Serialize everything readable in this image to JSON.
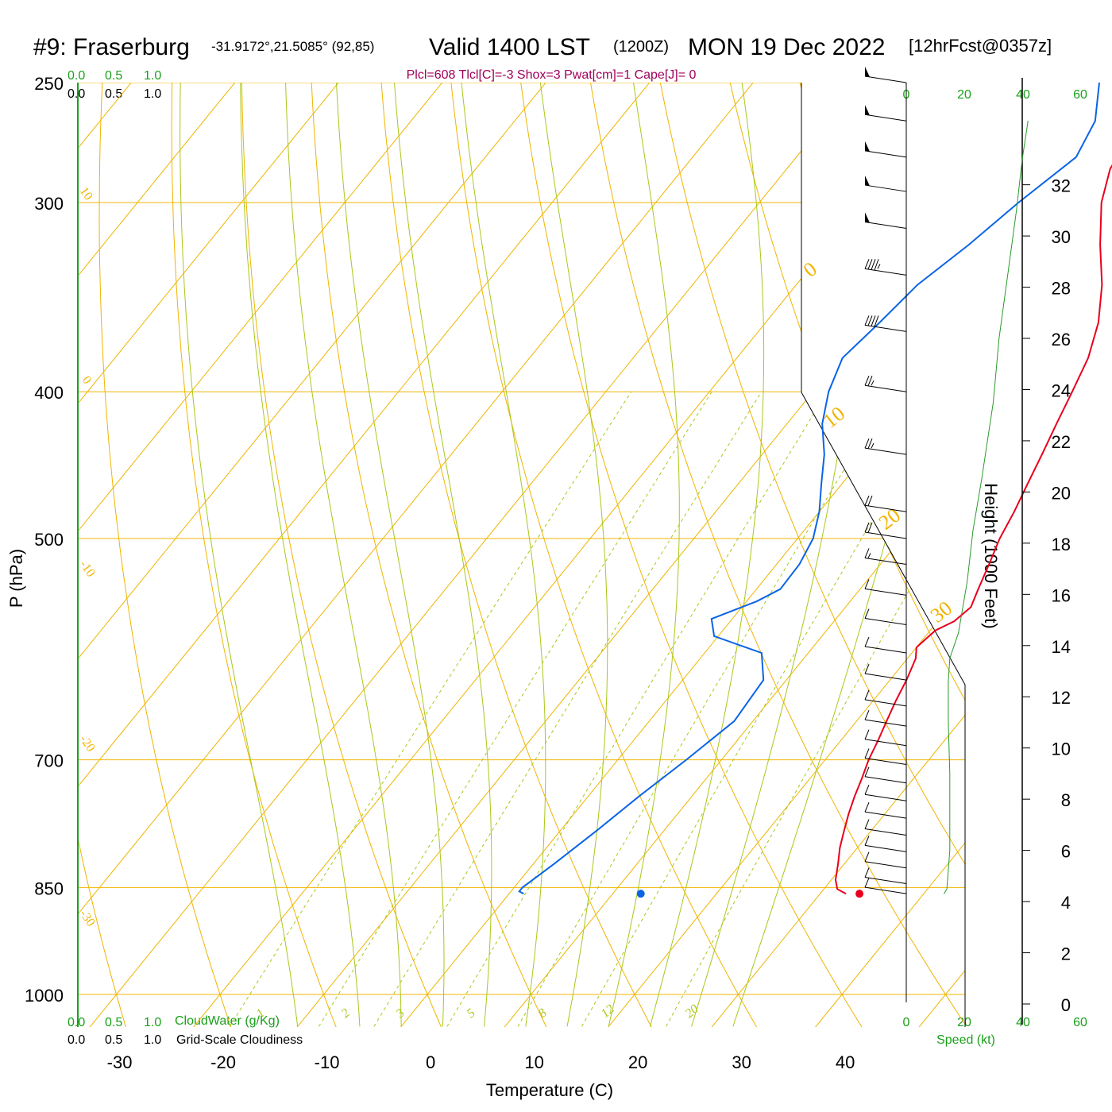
{
  "title": {
    "station": "#9: Fraserburg",
    "coords": "-31.9172°,21.5085° (92,85)",
    "valid": "Valid 1400 LST",
    "zulu": "(1200Z)",
    "date": "MON 19 Dec 2022",
    "forecast": "[12hrFcst@0357z]"
  },
  "indices": "Plcl=608 Tlcl[C]=-3 Shox=3 Pwat[cm]=1 Cape[J]= 0",
  "cloud_scale": {
    "top_green": [
      "0.0",
      "0.5",
      "1.0"
    ],
    "top_black": [
      "0.0",
      "0.5",
      "1.0"
    ],
    "bottom_green": [
      "0.0",
      "0.5",
      "1.0"
    ],
    "bottom_black": [
      "0.0",
      "0.5",
      "1.0"
    ],
    "cloudwater_label": "CloudWater (g/Kg)",
    "cloudiness_label": "Grid-Scale Cloudiness"
  },
  "speed_axis": {
    "ticks": [
      "0",
      "20",
      "40",
      "60"
    ],
    "label": "Speed (kt)"
  },
  "colors": {
    "temperature": "#e8001c",
    "dewpoint": "#0a64e6",
    "isotherm": "#f0b400",
    "moist_adiabat": "#a8c81a",
    "mixing_ratio": "#a8c81a",
    "speed_profile": "#2a9a2a",
    "indices": "#a0005a"
  },
  "chart_data": {
    "type": "line",
    "subtype": "skew-T log-P sounding",
    "xlabel": "Temperature (C)",
    "ylabel": "P (hPa)",
    "y2label": "Height (1000 Feet)",
    "x_ticks": [
      "-30",
      "-20",
      "-10",
      "0",
      "10",
      "20",
      "30",
      "40"
    ],
    "p_ticks": [
      "250",
      "300",
      "400",
      "500",
      "700",
      "850",
      "1000"
    ],
    "height_ticks": [
      "0",
      "2",
      "4",
      "6",
      "8",
      "10",
      "12",
      "14",
      "16",
      "18",
      "20",
      "22",
      "24",
      "26",
      "28",
      "30",
      "32"
    ],
    "xlim": [
      -34,
      36
    ],
    "plim": [
      250,
      1035
    ],
    "isotherm_labels": [
      "10",
      "0",
      "-10",
      "-20",
      "-30",
      "0",
      "10",
      "20",
      "30"
    ],
    "mixing_ratio_labels": [
      "1",
      "2",
      "3",
      "5",
      "8",
      "12",
      "20"
    ],
    "series": [
      {
        "name": "Temperature",
        "points": [
          [
            0.4,
            250
          ],
          [
            0.4,
            265
          ],
          [
            1.2,
            285
          ],
          [
            3.0,
            300
          ],
          [
            6.2,
            320
          ],
          [
            9.5,
            340
          ],
          [
            12.1,
            360
          ],
          [
            13.9,
            380
          ],
          [
            15.0,
            400
          ],
          [
            16.0,
            420
          ],
          [
            17.0,
            440
          ],
          [
            17.9,
            460
          ],
          [
            18.8,
            480
          ],
          [
            19.5,
            500
          ],
          [
            20.5,
            520
          ],
          [
            21.4,
            540
          ],
          [
            22.1,
            555
          ],
          [
            21.6,
            567
          ],
          [
            20.5,
            575
          ],
          [
            20.0,
            590
          ],
          [
            20.8,
            600
          ],
          [
            21.6,
            620
          ],
          [
            22.2,
            640
          ],
          [
            22.9,
            660
          ],
          [
            23.6,
            680
          ],
          [
            24.2,
            700
          ],
          [
            25.0,
            720
          ],
          [
            25.7,
            740
          ],
          [
            26.5,
            760
          ],
          [
            27.4,
            780
          ],
          [
            28.3,
            800
          ],
          [
            29.4,
            820
          ],
          [
            30.4,
            840
          ],
          [
            31.3,
            852
          ],
          [
            32.5,
            858
          ]
        ]
      },
      {
        "name": "Dewpoint",
        "points": [
          [
            -6.6,
            250
          ],
          [
            -4.0,
            265
          ],
          [
            -3.0,
            280
          ],
          [
            -5.0,
            300
          ],
          [
            -6.5,
            320
          ],
          [
            -8.3,
            340
          ],
          [
            -9.0,
            360
          ],
          [
            -9.8,
            380
          ],
          [
            -8.5,
            400
          ],
          [
            -6.6,
            420
          ],
          [
            -4.0,
            440
          ],
          [
            -2.0,
            460
          ],
          [
            0.0,
            480
          ],
          [
            1.5,
            500
          ],
          [
            2.2,
            520
          ],
          [
            2.3,
            540
          ],
          [
            1.0,
            550
          ],
          [
            -2.0,
            565
          ],
          [
            -0.4,
            580
          ],
          [
            5.5,
            595
          ],
          [
            7.8,
            620
          ],
          [
            8.2,
            660
          ],
          [
            6.6,
            700
          ],
          [
            4.9,
            740
          ],
          [
            3.5,
            780
          ],
          [
            2.0,
            820
          ],
          [
            0.8,
            850
          ],
          [
            0.8,
            855
          ],
          [
            1.4,
            858
          ]
        ]
      }
    ],
    "surface_markers": [
      {
        "name": "Surface temperature",
        "t": 33.8,
        "p": 858
      },
      {
        "name": "Surface dewpoint",
        "t": 12.7,
        "p": 858
      }
    ],
    "wind_speed_profile": {
      "xlim": [
        0,
        60
      ],
      "points": [
        [
          13,
          4.3
        ],
        [
          14,
          4.5
        ],
        [
          15,
          6.0
        ],
        [
          15,
          9.0
        ],
        [
          14.5,
          11.0
        ],
        [
          14.5,
          12.6
        ],
        [
          15,
          13.5
        ],
        [
          18,
          14.5
        ],
        [
          21,
          16.5
        ],
        [
          23,
          18.5
        ],
        [
          26,
          20.5
        ],
        [
          28,
          22.0
        ],
        [
          30,
          23.5
        ],
        [
          32,
          26.0
        ],
        [
          35,
          28.5
        ],
        [
          38,
          31.0
        ],
        [
          40,
          33.0
        ],
        [
          42,
          34.5
        ]
      ]
    },
    "wind_barbs": [
      {
        "p": 250,
        "speed_kt": 50
      },
      {
        "p": 265,
        "speed_kt": 50
      },
      {
        "p": 280,
        "speed_kt": 50
      },
      {
        "p": 295,
        "speed_kt": 50
      },
      {
        "p": 312,
        "speed_kt": 50
      },
      {
        "p": 335,
        "speed_kt": 45
      },
      {
        "p": 365,
        "speed_kt": 40
      },
      {
        "p": 400,
        "speed_kt": 25
      },
      {
        "p": 440,
        "speed_kt": 25
      },
      {
        "p": 480,
        "speed_kt": 20
      },
      {
        "p": 500,
        "speed_kt": 20
      },
      {
        "p": 520,
        "speed_kt": 15
      },
      {
        "p": 545,
        "speed_kt": 10
      },
      {
        "p": 570,
        "speed_kt": 10
      },
      {
        "p": 595,
        "speed_kt": 10
      },
      {
        "p": 620,
        "speed_kt": 10
      },
      {
        "p": 645,
        "speed_kt": 10
      },
      {
        "p": 665,
        "speed_kt": 10
      },
      {
        "p": 685,
        "speed_kt": 10
      },
      {
        "p": 705,
        "speed_kt": 10
      },
      {
        "p": 725,
        "speed_kt": 10
      },
      {
        "p": 745,
        "speed_kt": 10
      },
      {
        "p": 765,
        "speed_kt": 10
      },
      {
        "p": 785,
        "speed_kt": 10
      },
      {
        "p": 805,
        "speed_kt": 10
      },
      {
        "p": 825,
        "speed_kt": 10
      },
      {
        "p": 845,
        "speed_kt": 10
      },
      {
        "p": 858,
        "speed_kt": 10
      }
    ]
  }
}
